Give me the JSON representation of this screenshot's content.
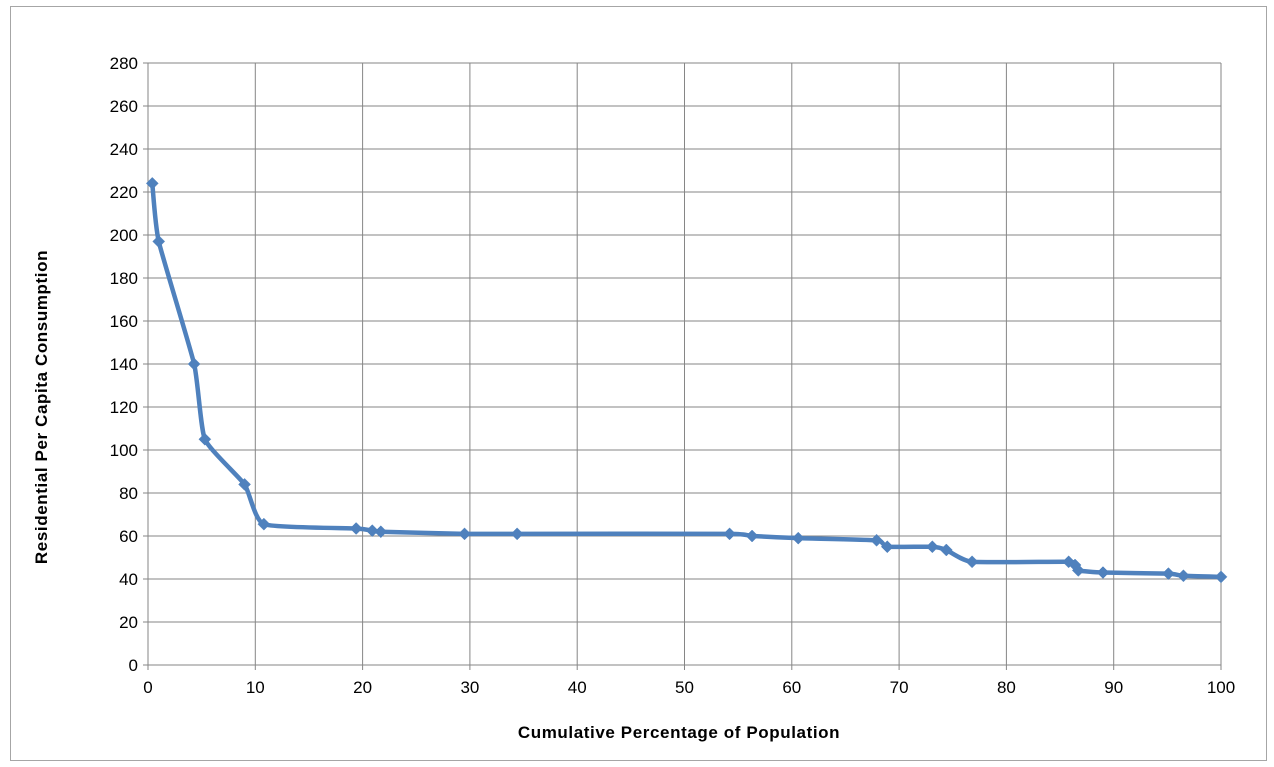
{
  "chart_data": {
    "type": "line",
    "title": "",
    "xlabel": "Cumulative Percentage of Population",
    "ylabel": "Residential Per Capita Consumption",
    "xlim": [
      0,
      100
    ],
    "ylim": [
      0,
      280
    ],
    "x_ticks": [
      0,
      10,
      20,
      30,
      40,
      50,
      60,
      70,
      80,
      90,
      100
    ],
    "y_ticks": [
      0,
      20,
      40,
      60,
      80,
      100,
      120,
      140,
      160,
      180,
      200,
      220,
      240,
      260,
      280
    ],
    "grid": true,
    "legend": "none",
    "series": [
      {
        "color": "#4f81bd",
        "marker": "diamond",
        "smooth": true,
        "points": [
          [
            0.4,
            224
          ],
          [
            1.0,
            197
          ],
          [
            4.3,
            140
          ],
          [
            5.3,
            105
          ],
          [
            9.0,
            84
          ],
          [
            10.8,
            65.5
          ],
          [
            19.4,
            63.5
          ],
          [
            20.9,
            62.5
          ],
          [
            21.7,
            62
          ],
          [
            29.5,
            61
          ],
          [
            34.4,
            61
          ],
          [
            54.2,
            61
          ],
          [
            56.3,
            60
          ],
          [
            60.6,
            59
          ],
          [
            67.9,
            58
          ],
          [
            68.9,
            55
          ],
          [
            73.1,
            55
          ],
          [
            74.4,
            53.5
          ],
          [
            76.8,
            48
          ],
          [
            85.8,
            48
          ],
          [
            86.4,
            46.5
          ],
          [
            86.7,
            44
          ],
          [
            89.0,
            43
          ],
          [
            95.1,
            42.5
          ],
          [
            96.5,
            41.5
          ],
          [
            100,
            41
          ]
        ]
      }
    ]
  }
}
